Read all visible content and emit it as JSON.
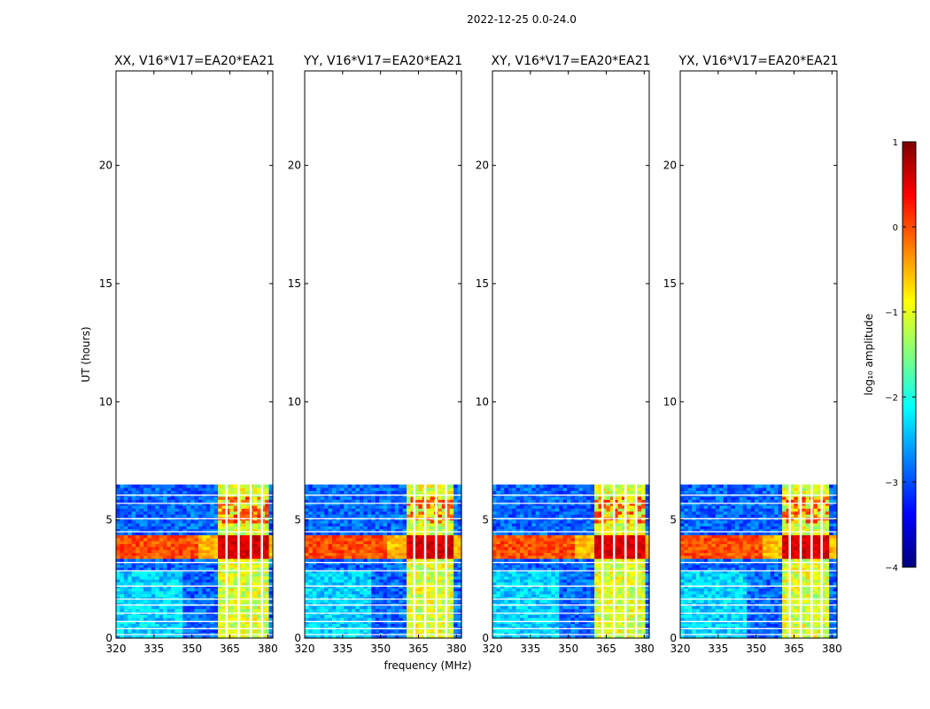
{
  "figure_title": "2022-12-25 0.0-24.0",
  "chart_data": [
    {
      "type": "heatmap",
      "title": "XX, V16*V17=EA20*EA21",
      "xlabel": "",
      "ylabel": "UT (hours)",
      "xlim": [
        320,
        382
      ],
      "ylim": [
        0,
        24
      ],
      "xticks": [
        320,
        335,
        350,
        365,
        380
      ],
      "yticks": [
        0,
        5,
        10,
        15,
        20
      ],
      "data_time_range_hours": [
        0,
        6.5
      ],
      "rfi_band_mhz": [
        360,
        380
      ],
      "strong_rfi_time_hours": [
        3.3,
        4.3
      ]
    },
    {
      "type": "heatmap",
      "title": "YY, V16*V17=EA20*EA21",
      "xlabel": "frequency (MHz)",
      "ylabel": "",
      "xlim": [
        320,
        382
      ],
      "ylim": [
        0,
        24
      ],
      "xticks": [
        320,
        335,
        350,
        365,
        380
      ],
      "yticks": [
        0,
        5,
        10,
        15,
        20
      ],
      "data_time_range_hours": [
        0,
        6.5
      ],
      "rfi_band_mhz": [
        360,
        378
      ],
      "strong_rfi_time_hours": [
        3.3,
        4.3
      ]
    },
    {
      "type": "heatmap",
      "title": "XY, V16*V17=EA20*EA21",
      "xlabel": "",
      "ylabel": "",
      "xlim": [
        320,
        382
      ],
      "ylim": [
        0,
        24
      ],
      "xticks": [
        320,
        335,
        350,
        365,
        380
      ],
      "yticks": [
        0,
        5,
        10,
        15,
        20
      ],
      "data_time_range_hours": [
        0,
        6.5
      ],
      "rfi_band_mhz": [
        360,
        379
      ],
      "strong_rfi_time_hours": [
        3.3,
        4.3
      ]
    },
    {
      "type": "heatmap",
      "title": "YX, V16*V17=EA20*EA21",
      "xlabel": "",
      "ylabel": "",
      "xlim": [
        320,
        382
      ],
      "ylim": [
        0,
        24
      ],
      "xticks": [
        320,
        335,
        350,
        365,
        380
      ],
      "yticks": [
        0,
        5,
        10,
        15,
        20
      ],
      "data_time_range_hours": [
        0,
        6.5
      ],
      "rfi_band_mhz": [
        360,
        378
      ],
      "strong_rfi_time_hours": [
        3.3,
        4.3
      ]
    }
  ],
  "colorbar": {
    "label": "log₁₀ amplitude",
    "min": -4,
    "max": 1,
    "ticks": [
      "1",
      "0",
      "−1",
      "−2",
      "−3",
      "−4"
    ]
  },
  "colors": {
    "cmap": [
      "#00007f",
      "#0000ff",
      "#007fff",
      "#00ffff",
      "#7fff7f",
      "#ffff00",
      "#ff7f00",
      "#ff0000",
      "#7f0000"
    ]
  }
}
